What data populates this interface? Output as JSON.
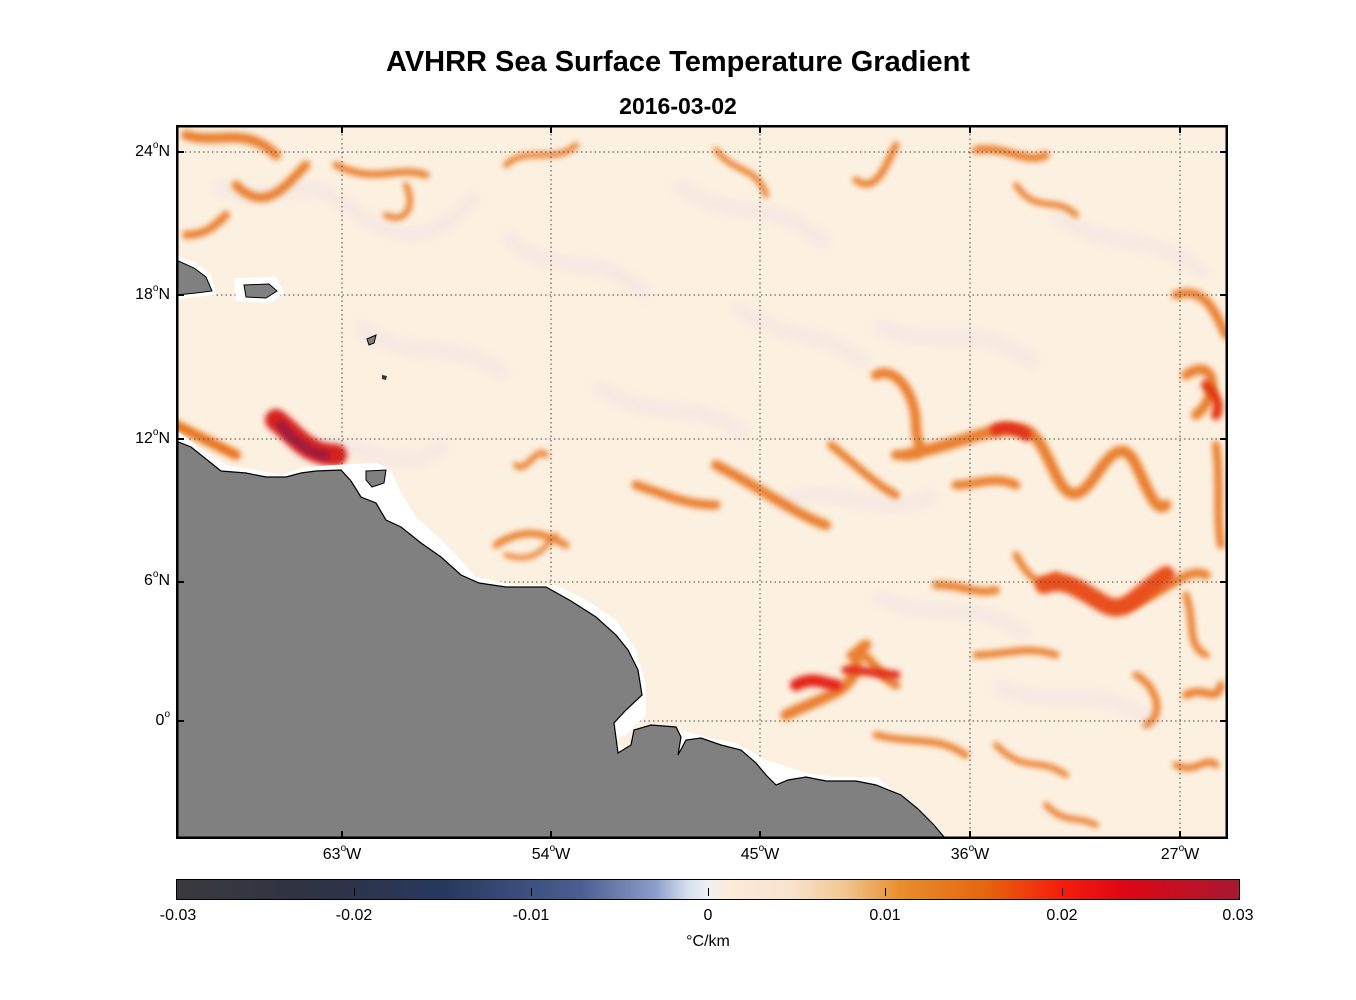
{
  "title": "AVHRR Sea Surface Temperature Gradient",
  "subtitle": "2016-03-02",
  "map": {
    "lat_labels": [
      {
        "deg": "24",
        "hemi": "N"
      },
      {
        "deg": "18",
        "hemi": "N"
      },
      {
        "deg": "12",
        "hemi": "N"
      },
      {
        "deg": "6",
        "hemi": "N"
      },
      {
        "deg": "0",
        "hemi": ""
      }
    ],
    "lon_labels": [
      {
        "deg": "63",
        "hemi": "W"
      },
      {
        "deg": "54",
        "hemi": "W"
      },
      {
        "deg": "45",
        "hemi": "W"
      },
      {
        "deg": "36",
        "hemi": "W"
      },
      {
        "deg": "27",
        "hemi": "W"
      }
    ],
    "colors": {
      "land": "#808080",
      "ocean_base": "#fcf0e0",
      "gradient_feature": "#e8731a",
      "strong_feature": "#e21512",
      "frame": "#000000"
    }
  },
  "colorbar": {
    "ticks": [
      "-0.03",
      "-0.02",
      "-0.01",
      "0",
      "0.01",
      "0.02",
      "0.03"
    ],
    "units": "°C/km",
    "range": [
      -0.03,
      0.03
    ]
  }
}
